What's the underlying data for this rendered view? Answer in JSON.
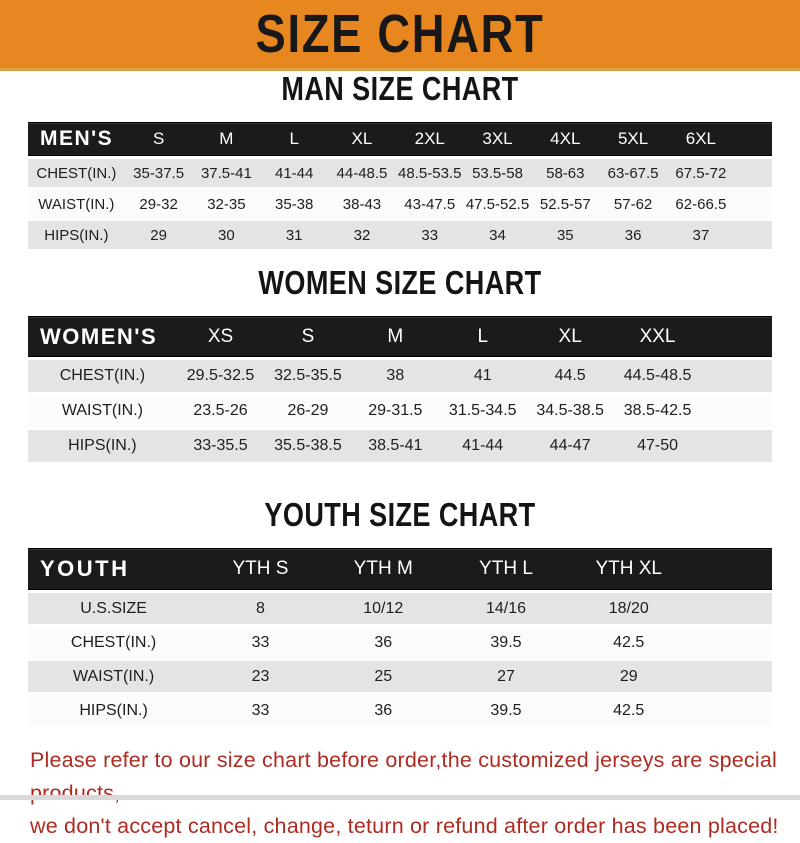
{
  "banner": {
    "title": "SIZE CHART",
    "bg_color": "#E8861F",
    "text_color": "#181818"
  },
  "sections": [
    {
      "id": "men",
      "heading": "MAN SIZE CHART",
      "header_label": "MEN'S",
      "columns": [
        "S",
        "M",
        "L",
        "XL",
        "2XL",
        "3XL",
        "4XL",
        "5XL",
        "6XL"
      ],
      "rows": [
        {
          "label": "CHEST(IN.)",
          "values": [
            "35-37.5",
            "37.5-41",
            "41-44",
            "44-48.5",
            "48.5-53.5",
            "53.5-58",
            "58-63",
            "63-67.5",
            "67.5-72"
          ]
        },
        {
          "label": "WAIST(IN.)",
          "values": [
            "29-32",
            "32-35",
            "35-38",
            "38-43",
            "43-47.5",
            "47.5-52.5",
            "52.5-57",
            "57-62",
            "62-66.5"
          ]
        },
        {
          "label": "HIPS(IN.)",
          "values": [
            "29",
            "30",
            "31",
            "32",
            "33",
            "34",
            "35",
            "36",
            "37"
          ]
        }
      ]
    },
    {
      "id": "women",
      "heading": "WOMEN SIZE CHART",
      "header_label": "WOMEN'S",
      "columns": [
        "XS",
        "S",
        "M",
        "L",
        "XL",
        "XXL"
      ],
      "rows": [
        {
          "label": "CHEST(IN.)",
          "values": [
            "29.5-32.5",
            "32.5-35.5",
            "38",
            "41",
            "44.5",
            "44.5-48.5"
          ]
        },
        {
          "label": "WAIST(IN.)",
          "values": [
            "23.5-26",
            "26-29",
            "29-31.5",
            "31.5-34.5",
            "34.5-38.5",
            "38.5-42.5"
          ]
        },
        {
          "label": "HIPS(IN.)",
          "values": [
            "33-35.5",
            "35.5-38.5",
            "38.5-41",
            "41-44",
            "44-47",
            "47-50"
          ]
        }
      ]
    },
    {
      "id": "youth",
      "heading": "YOUTH SIZE CHART",
      "header_label": "YOUTH",
      "columns": [
        "YTH S",
        "YTH M",
        "YTH L",
        "YTH XL"
      ],
      "rows": [
        {
          "label": "U.S.SIZE",
          "values": [
            "8",
            "10/12",
            "14/16",
            "18/20"
          ]
        },
        {
          "label": "CHEST(IN.)",
          "values": [
            "33",
            "36",
            "39.5",
            "42.5"
          ]
        },
        {
          "label": "WAIST(IN.)",
          "values": [
            "23",
            "25",
            "27",
            "29"
          ]
        },
        {
          "label": "HIPS(IN.)",
          "values": [
            "33",
            "36",
            "39.5",
            "42.5"
          ]
        }
      ]
    }
  ],
  "disclaimer": {
    "line1": "Please refer to our size chart before order,the customized jerseys are special products,",
    "line2": "we don't accept cancel, change, teturn or refund after order has been placed!",
    "color": "#AE2B22"
  }
}
